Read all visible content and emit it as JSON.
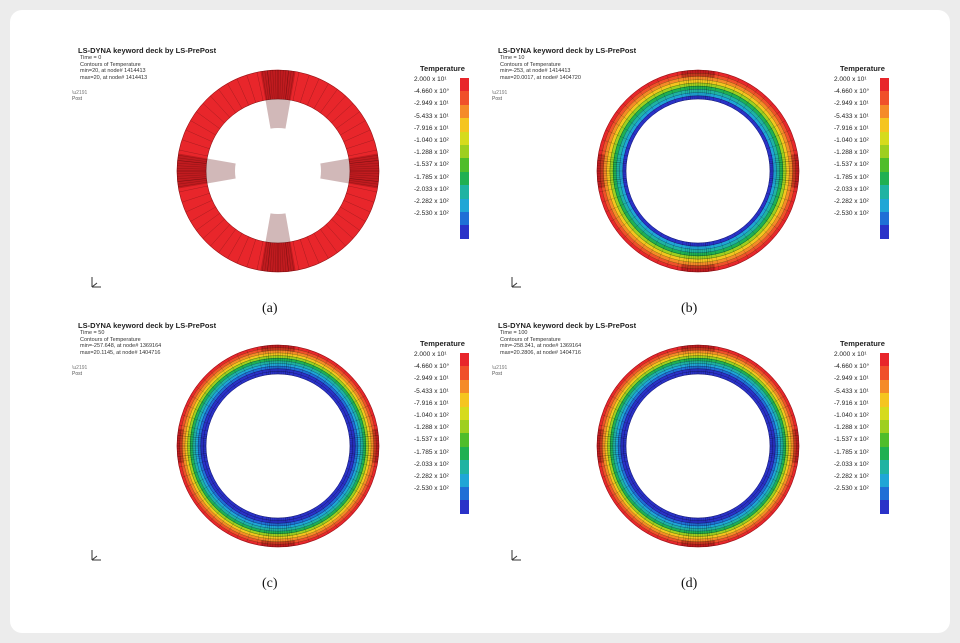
{
  "legend": {
    "title": "Temperature",
    "ticks": [
      "2.000 x 10¹",
      "-4.660 x 10°",
      "-2.949 x 10¹",
      "-5.433 x 10¹",
      "-7.916 x 10¹",
      "-1.040 x 10²",
      "-1.288 x 10²",
      "-1.537 x 10²",
      "-1.785 x 10²",
      "-2.033 x 10²",
      "-2.282 x 10²",
      "-2.530 x 10²"
    ],
    "colors": [
      "#e8262b",
      "#f0502a",
      "#f58a28",
      "#f5c51f",
      "#d6db1c",
      "#9ecf1f",
      "#4fbd2a",
      "#1fb052",
      "#1fb3a2",
      "#1fa6d6",
      "#1f6fd6",
      "#2a32c8"
    ]
  },
  "panels": [
    {
      "title": "LS-DYNA keyword deck by LS-PrePost",
      "time": "Time =         0",
      "contours": "Contours of Temperature",
      "min": "min=20, at node# 1414413",
      "max": "max=20, at node# 1414413",
      "post": "Post",
      "label": "(a)",
      "layers": [
        "#e8262b"
      ]
    },
    {
      "title": "LS-DYNA keyword deck by LS-PrePost",
      "time": "Time =       10",
      "contours": "Contours of Temperature",
      "min": "min=-253, at node# 1414413",
      "max": "max=20.0017, at node# 1404720",
      "post": "Post",
      "label": "(b)",
      "layers": [
        "#e8262b",
        "#f0502a",
        "#f58a28",
        "#f5c51f",
        "#9ecf1f",
        "#1fb052",
        "#1fb3a2",
        "#1fa6d6",
        "#2a32c8"
      ]
    },
    {
      "title": "LS-DYNA keyword deck by LS-PrePost",
      "time": "Time =       50",
      "contours": "Contours of Temperature",
      "min": "min=-257.648, at node# 1369164",
      "max": "max=20.1145, at node# 1404716",
      "post": "Post",
      "label": "(c)",
      "layers": [
        "#e8262b",
        "#f0502a",
        "#f58a28",
        "#f5c51f",
        "#9ecf1f",
        "#1fb052",
        "#1fb3a2",
        "#1fa6d6",
        "#1f6fd6",
        "#2a32c8",
        "#2a32c8"
      ]
    },
    {
      "title": "LS-DYNA keyword deck by LS-PrePost",
      "time": "Time =      100",
      "contours": "Contours of Temperature",
      "min": "min=-258.341, at node# 1369164",
      "max": "max=20.2806, at node# 1404716",
      "post": "Post",
      "label": "(d)",
      "layers": [
        "#e8262b",
        "#f0502a",
        "#f58a28",
        "#f5c51f",
        "#9ecf1f",
        "#1fb052",
        "#1fb3a2",
        "#1fa6d6",
        "#1f6fd6",
        "#2a32c8",
        "#2a32c8"
      ]
    }
  ]
}
